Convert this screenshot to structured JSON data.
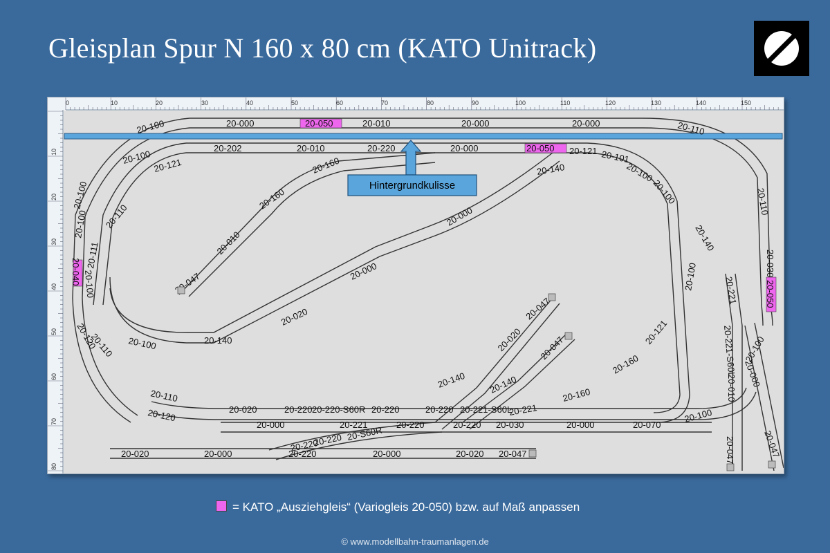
{
  "title": "Gleisplan Spur N 160 x 80 cm (KATO Unitrack)",
  "callout": "Hintergrundkulisse",
  "legend_text": "= KATO „Ausziehgleis“ (Variogleis 20-050) bzw. auf Maß anpassen",
  "copyright": "© www.modellbahn-traumanlagen.de",
  "colors": {
    "background": "#3a6a9c",
    "variogleis": "#ee66ee",
    "backdrop": "#5aa6dc"
  },
  "icons": {
    "logo": "slashed-circle-logo-icon"
  },
  "ruler_x": [
    "0",
    "10",
    "20",
    "30",
    "40",
    "50",
    "60",
    "70",
    "80",
    "90",
    "100",
    "110",
    "120",
    "130",
    "140",
    "150"
  ],
  "ruler_y": [
    "10",
    "20",
    "30",
    "40",
    "50",
    "60",
    "70",
    "80"
  ],
  "track_labels": [
    "20-100",
    "20-000",
    "20-050",
    "20-010",
    "20-000",
    "20-000",
    "20-110",
    "20-100",
    "20-202",
    "20-010",
    "20-220",
    "20-000",
    "20-050",
    "20-121",
    "20-101",
    "20-121",
    "20-160",
    "20-140",
    "20-100",
    "20-100",
    "20-160",
    "20-110",
    "20-100",
    "20-010",
    "20-000",
    "20-140",
    "20-100",
    "20-110",
    "20-030",
    "20-050",
    "20-040",
    "20-111",
    "20-100",
    "20-047",
    "20-000",
    "20-100",
    "20-020",
    "20-221",
    "20-120",
    "20-110",
    "20-100",
    "20-140",
    "20-047",
    "20-020",
    "20-221-S60L",
    "20-047",
    "20-121",
    "20-140",
    "20-140",
    "20-160",
    "20-160",
    "20-100",
    "20-010",
    "20-000",
    "20-110",
    "20-020",
    "20-220",
    "20-220-S60R",
    "20-220",
    "20-220",
    "20-221-S60L",
    "20-221",
    "20-120",
    "20-000",
    "20-221",
    "20-220",
    "20-220",
    "20-030",
    "20-000",
    "20-070",
    "20-100",
    "20-220",
    "20-220",
    "20-S60R",
    "20-020",
    "20-000",
    "20-220",
    "20-000",
    "20-020",
    "20-047",
    "20-047",
    "20-047"
  ]
}
